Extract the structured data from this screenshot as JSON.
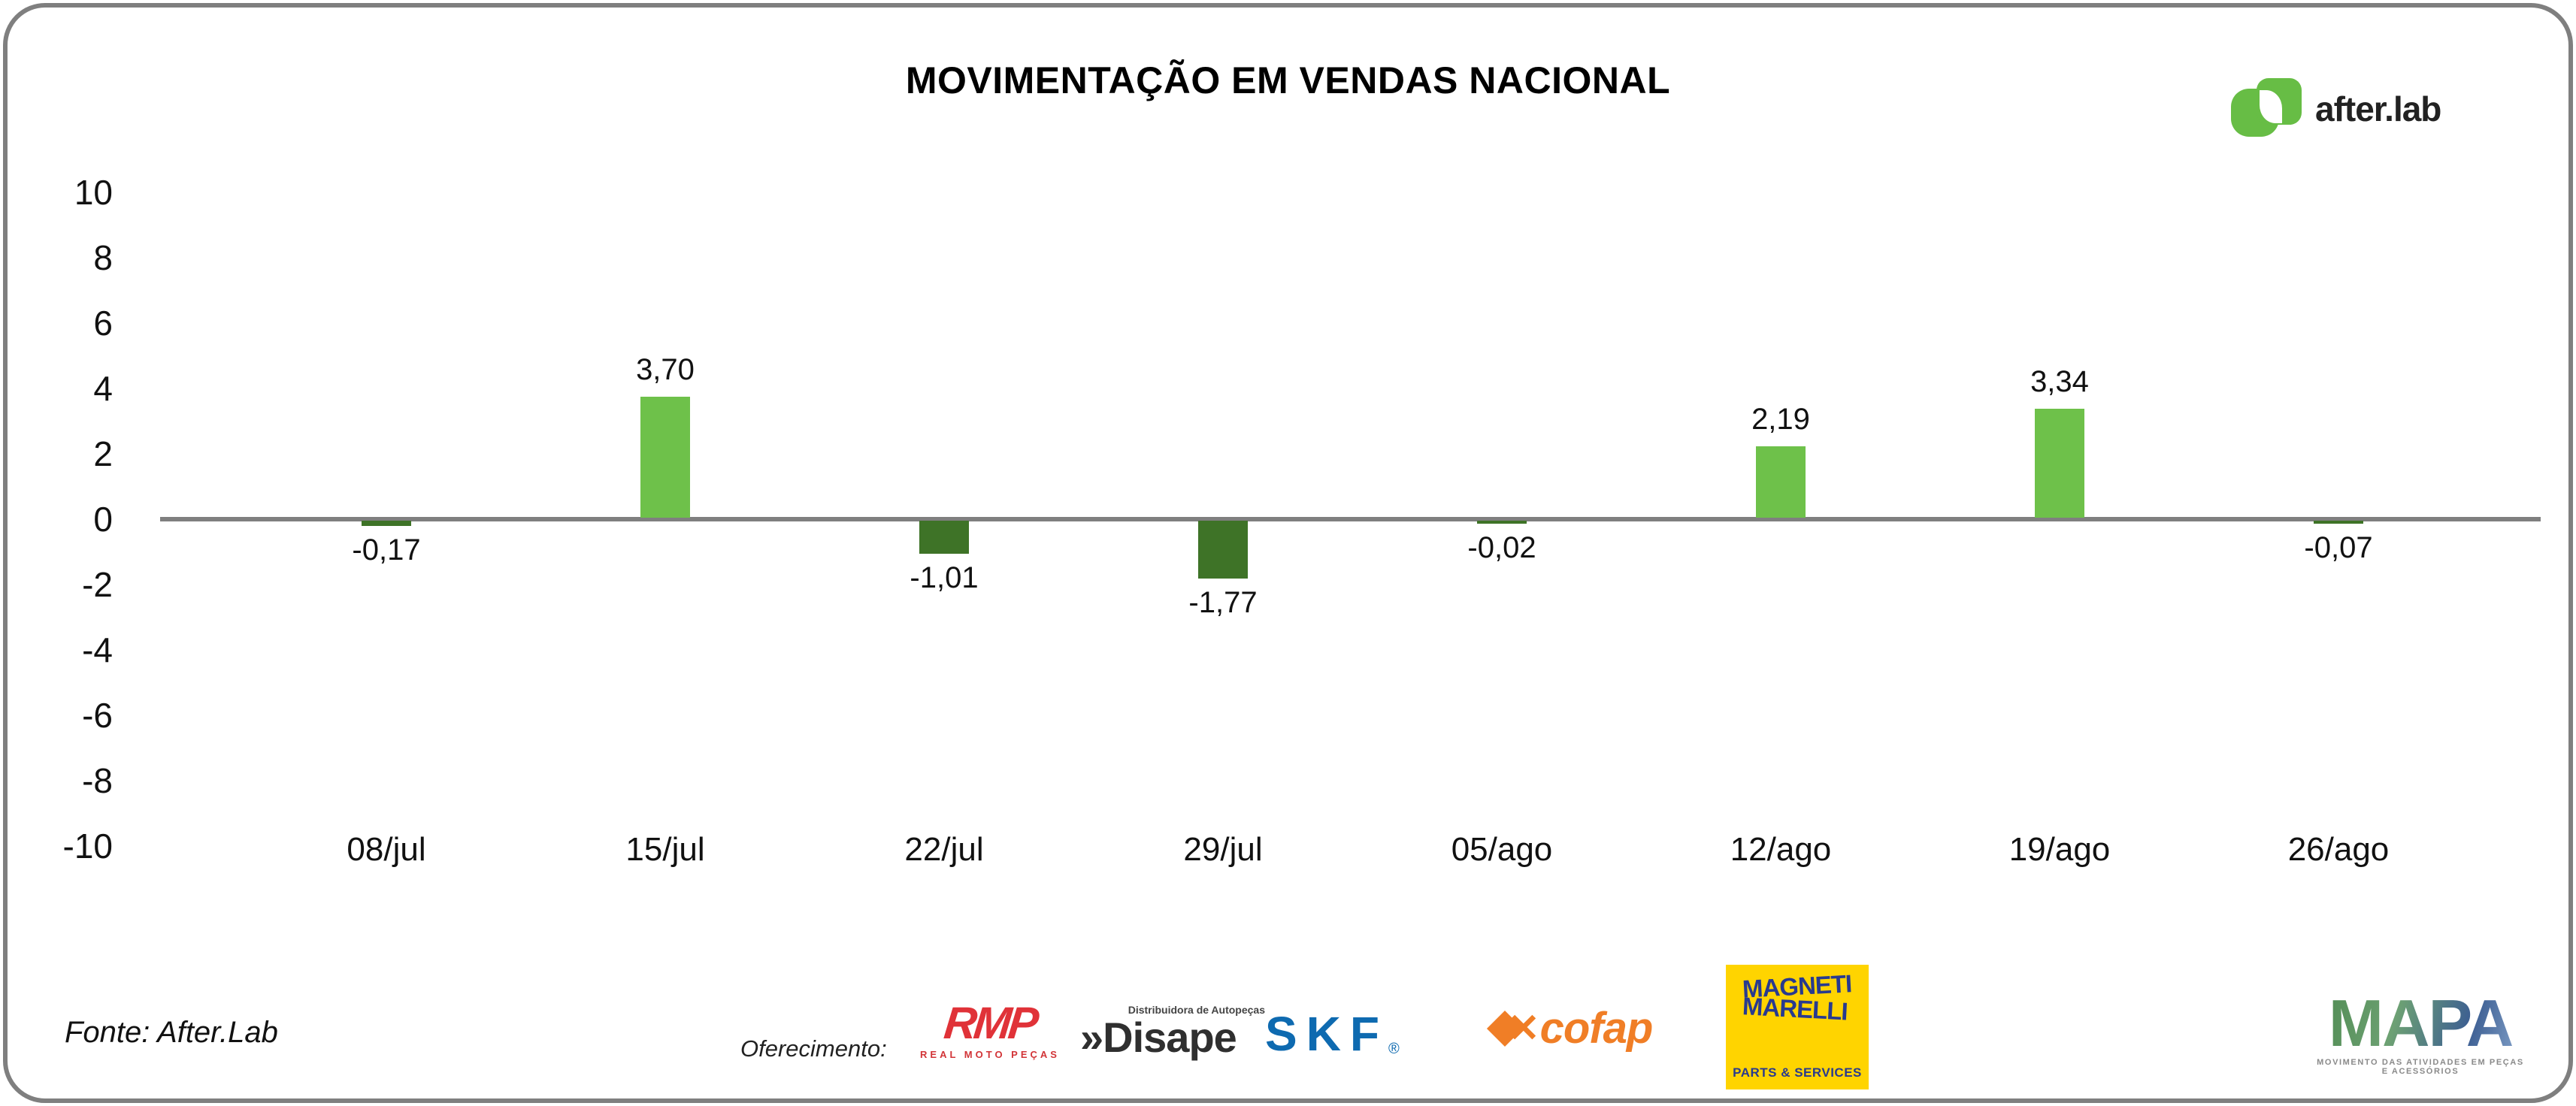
{
  "title": "MOVIMENTAÇÃO EM VENDAS NACIONAL",
  "brand": {
    "name": "after.lab",
    "logo_color": "#67bd45"
  },
  "chart_data": {
    "type": "bar",
    "title": "MOVIMENTAÇÃO EM VENDAS NACIONAL",
    "categories": [
      "08/jul",
      "15/jul",
      "22/jul",
      "29/jul",
      "05/ago",
      "12/ago",
      "19/ago",
      "26/ago"
    ],
    "values": [
      -0.17,
      3.7,
      -1.01,
      -1.77,
      -0.02,
      2.19,
      3.34,
      -0.07
    ],
    "value_labels": [
      "-0,17",
      "3,70",
      "-1,01",
      "-1,77",
      "-0,02",
      "2,19",
      "3,34",
      "-0,07"
    ],
    "xlabel": "",
    "ylabel": "",
    "ylim": [
      -10,
      10
    ],
    "yticks": [
      10,
      8,
      6,
      4,
      2,
      0,
      -2,
      -4,
      -6,
      -8,
      -10
    ],
    "ytick_labels": [
      "10",
      "8",
      "6",
      "4",
      "2",
      "0",
      "-2",
      "-4",
      "-6",
      "-8",
      "-10"
    ],
    "grid": false,
    "legend": "none",
    "positive_color": "#6ec14a",
    "negative_color": "#3e7327",
    "axis_color": "#7f7f7f"
  },
  "footer": {
    "fonte": "Fonte: After.Lab",
    "oferecimento": "Oferecimento:",
    "sponsors": {
      "rmp": {
        "name": "RMP",
        "sub": "REAL MOTO PEÇAS"
      },
      "disape": {
        "prefix": "»",
        "name": "Disape",
        "sub": "Distribuidora de Autopeças"
      },
      "skf": {
        "name": "SKF",
        "reg": "®"
      },
      "cofap": {
        "name": "cofap"
      },
      "marelli": {
        "line1": "MAGNETI",
        "line2": "MARELLI",
        "sub": "PARTS & SERVICES"
      },
      "mapa": {
        "name": "MAPA",
        "sub": "MOVIMENTO DAS ATIVIDADES EM PEÇAS E ACESSÓRIOS"
      }
    }
  }
}
